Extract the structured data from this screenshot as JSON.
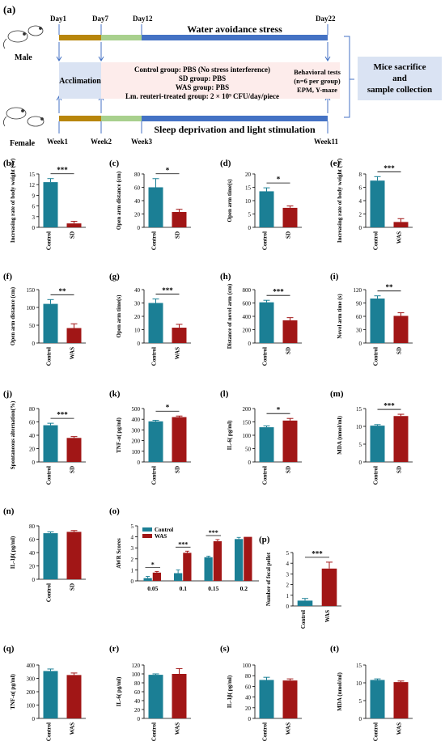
{
  "timeline": {
    "panel_label": "(a)",
    "day_labels": [
      "Day1",
      "Day7",
      "Day12",
      "Day22"
    ],
    "week_labels": [
      "Week1",
      "Week2",
      "Week3",
      "Week11"
    ],
    "male_label": "Male",
    "female_label": "Female",
    "top_bar_title": "Water avoidance stress",
    "bottom_bar_title": "Sleep deprivation and light stimulation",
    "acclimation": "Acclimation",
    "groups": [
      "Control group: PBS (No stress interference)",
      "SD group: PBS",
      "WAS group:  PBS",
      "Lm. reuteri-treated group: 2 × 10⁹ CFU/day/piece"
    ],
    "behavioral": [
      "Behavioral tests",
      "(n=6 per group)",
      "EPM, Y-maze"
    ],
    "outcome": [
      "Mice sacrifice",
      "and",
      "sample collection"
    ],
    "colors": {
      "brown": "#b8860b",
      "green": "#a8d08d",
      "blue": "#4472c4",
      "acclim_bg": "#dae3f3",
      "groups_bg": "#fdeceb",
      "outcome_bg": "#dae3f3"
    }
  },
  "colors": {
    "control": "#1b7f95",
    "treated": "#a11616"
  },
  "chart_data": [
    {
      "id": "b",
      "label": "(b)",
      "type": "bar",
      "categories": [
        "Control",
        "SD"
      ],
      "values": [
        12.7,
        1.1
      ],
      "errors": [
        1.0,
        0.6
      ],
      "ylabel": "Increasing rate of body weight (%)",
      "yticks": [
        0,
        3,
        6,
        9,
        12,
        15
      ],
      "ylim": [
        0,
        15
      ],
      "sig": "***"
    },
    {
      "id": "c",
      "label": "(c)",
      "type": "bar",
      "categories": [
        "Control",
        "SD"
      ],
      "values": [
        60,
        23
      ],
      "errors": [
        13,
        4
      ],
      "ylabel": "Open arm distance (cm)",
      "yticks": [
        0,
        20,
        40,
        60,
        80
      ],
      "ylim": [
        0,
        80
      ],
      "sig": "*"
    },
    {
      "id": "d",
      "label": "(d)",
      "type": "bar",
      "categories": [
        "Control",
        "SD"
      ],
      "values": [
        13.5,
        7.3
      ],
      "errors": [
        1.3,
        0.7
      ],
      "ylabel": "Open arm time(s)",
      "yticks": [
        0,
        5,
        10,
        15,
        20
      ],
      "ylim": [
        0,
        20
      ],
      "sig": "*"
    },
    {
      "id": "e",
      "label": "(e)",
      "type": "bar",
      "categories": [
        "Control",
        "WAS"
      ],
      "values": [
        7.0,
        0.8
      ],
      "errors": [
        0.6,
        0.5
      ],
      "ylabel": "Increasing rate of body weight (%)",
      "yticks": [
        0,
        2,
        4,
        6,
        8
      ],
      "ylim": [
        0,
        8
      ],
      "sig": "***"
    },
    {
      "id": "f",
      "label": "(f)",
      "type": "bar",
      "categories": [
        "Control",
        "WAS"
      ],
      "values": [
        110,
        42
      ],
      "errors": [
        12,
        12
      ],
      "ylabel": "Open arm distance (cm)",
      "yticks": [
        0,
        50,
        100,
        150
      ],
      "ylim": [
        0,
        150
      ],
      "sig": "**"
    },
    {
      "id": "g",
      "label": "(g)",
      "type": "bar",
      "categories": [
        "Control",
        "WAS"
      ],
      "values": [
        30,
        11.5
      ],
      "errors": [
        3,
        2.5
      ],
      "ylabel": "Open arm time(s)",
      "yticks": [
        0,
        10,
        20,
        30,
        40
      ],
      "ylim": [
        0,
        40
      ],
      "sig": "***"
    },
    {
      "id": "h",
      "label": "(h)",
      "type": "bar",
      "categories": [
        "Control",
        "SD"
      ],
      "values": [
        610,
        340
      ],
      "errors": [
        30,
        40
      ],
      "ylabel": "Distance of novel arm (cm)",
      "yticks": [
        0,
        200,
        400,
        600,
        800
      ],
      "ylim": [
        0,
        800
      ],
      "sig": "***"
    },
    {
      "id": "i",
      "label": "(i)",
      "type": "bar",
      "categories": [
        "Control",
        "SD"
      ],
      "values": [
        100,
        61
      ],
      "errors": [
        6,
        7
      ],
      "ylabel": "Novel arm time (s)",
      "yticks": [
        0,
        30,
        60,
        90,
        120
      ],
      "ylim": [
        0,
        120
      ],
      "sig": "**"
    },
    {
      "id": "j",
      "label": "(j)",
      "type": "bar",
      "categories": [
        "Control",
        "SD"
      ],
      "values": [
        55,
        36
      ],
      "errors": [
        3,
        2
      ],
      "ylabel": "Spontaneous alternation(%)",
      "yticks": [
        0,
        20,
        40,
        60,
        80
      ],
      "ylim": [
        0,
        80
      ],
      "sig": "***"
    },
    {
      "id": "k",
      "label": "(k)",
      "type": "bar",
      "categories": [
        "Control",
        "SD"
      ],
      "values": [
        380,
        420
      ],
      "errors": [
        10,
        10
      ],
      "ylabel": "TNF-α( pg/ml)",
      "yticks": [
        0,
        100,
        200,
        300,
        400,
        500
      ],
      "ylim": [
        0,
        500
      ],
      "sig": "*"
    },
    {
      "id": "l",
      "label": "(l)",
      "type": "bar",
      "categories": [
        "Control",
        "SD"
      ],
      "values": [
        130,
        155
      ],
      "errors": [
        5,
        8
      ],
      "ylabel": "IL-6( pg/ml)",
      "yticks": [
        0,
        50,
        100,
        150,
        200
      ],
      "ylim": [
        0,
        200
      ],
      "sig": "*"
    },
    {
      "id": "m",
      "label": "(m)",
      "type": "bar",
      "categories": [
        "Control",
        "SD"
      ],
      "values": [
        10.2,
        12.9
      ],
      "errors": [
        0.3,
        0.5
      ],
      "ylabel": "MDA (nmol/ml)",
      "yticks": [
        0,
        5,
        10,
        15
      ],
      "ylim": [
        0,
        15
      ],
      "sig": "***"
    },
    {
      "id": "n",
      "label": "(n)",
      "type": "bar",
      "categories": [
        "Control",
        "SD"
      ],
      "values": [
        69,
        71
      ],
      "errors": [
        2,
        2
      ],
      "ylabel": "IL-1β( pg/ml)",
      "yticks": [
        0,
        20,
        40,
        60,
        80
      ],
      "ylim": [
        0,
        80
      ],
      "sig": ""
    },
    {
      "id": "o",
      "label": "(o)",
      "type": "bar",
      "categories": [
        "0.05",
        "0.1",
        "0.15",
        "0.2"
      ],
      "series": [
        {
          "name": "Control",
          "values": [
            0.25,
            0.7,
            2.15,
            3.8
          ],
          "errors": [
            0.15,
            0.3,
            0.1,
            0.15
          ]
        },
        {
          "name": "WAS",
          "values": [
            0.75,
            2.55,
            3.6,
            4.0
          ],
          "errors": [
            0.1,
            0.15,
            0.15,
            0.0
          ]
        }
      ],
      "ylabel": "AWR Scores",
      "yticks": [
        0,
        1,
        2,
        3,
        4,
        5
      ],
      "ylim": [
        0,
        5
      ],
      "sigs": [
        "*",
        "***",
        "***",
        ""
      ],
      "legend": "top-left"
    },
    {
      "id": "p",
      "label": "(p)",
      "type": "bar",
      "categories": [
        "Control",
        "WAS"
      ],
      "values": [
        0.5,
        3.5
      ],
      "errors": [
        0.2,
        0.6
      ],
      "ylabel": "Number of fecal pellet",
      "yticks": [
        0,
        1,
        2,
        3,
        4,
        5
      ],
      "ylim": [
        0,
        5
      ],
      "sig": "***"
    },
    {
      "id": "q",
      "label": "(q)",
      "type": "bar",
      "categories": [
        "Control",
        "WAS"
      ],
      "values": [
        355,
        325
      ],
      "errors": [
        15,
        15
      ],
      "ylabel": "TNF-α( pg/ml)",
      "yticks": [
        0,
        100,
        200,
        300,
        400
      ],
      "ylim": [
        0,
        400
      ],
      "sig": ""
    },
    {
      "id": "r",
      "label": "(r)",
      "type": "bar",
      "categories": [
        "Control",
        "WAS"
      ],
      "values": [
        98,
        100
      ],
      "errors": [
        2,
        12
      ],
      "ylabel": "IL-6( pg/ml)",
      "yticks": [
        0,
        20,
        40,
        60,
        80,
        100,
        120
      ],
      "ylim": [
        0,
        120
      ],
      "sig": ""
    },
    {
      "id": "s",
      "label": "(s)",
      "type": "bar",
      "categories": [
        "Control",
        "WAS"
      ],
      "values": [
        72,
        71
      ],
      "errors": [
        5,
        3
      ],
      "ylabel": "IL-1β( pg/ml)",
      "yticks": [
        0,
        20,
        40,
        60,
        80,
        100
      ],
      "ylim": [
        0,
        100
      ],
      "sig": ""
    },
    {
      "id": "t",
      "label": "(t)",
      "type": "bar",
      "categories": [
        "Control",
        "WAS"
      ],
      "values": [
        10.8,
        10.2
      ],
      "errors": [
        0.3,
        0.3
      ],
      "ylabel": "MDA (nmol/ml)",
      "yticks": [
        0,
        5,
        10,
        15
      ],
      "ylim": [
        0,
        15
      ],
      "sig": ""
    }
  ]
}
